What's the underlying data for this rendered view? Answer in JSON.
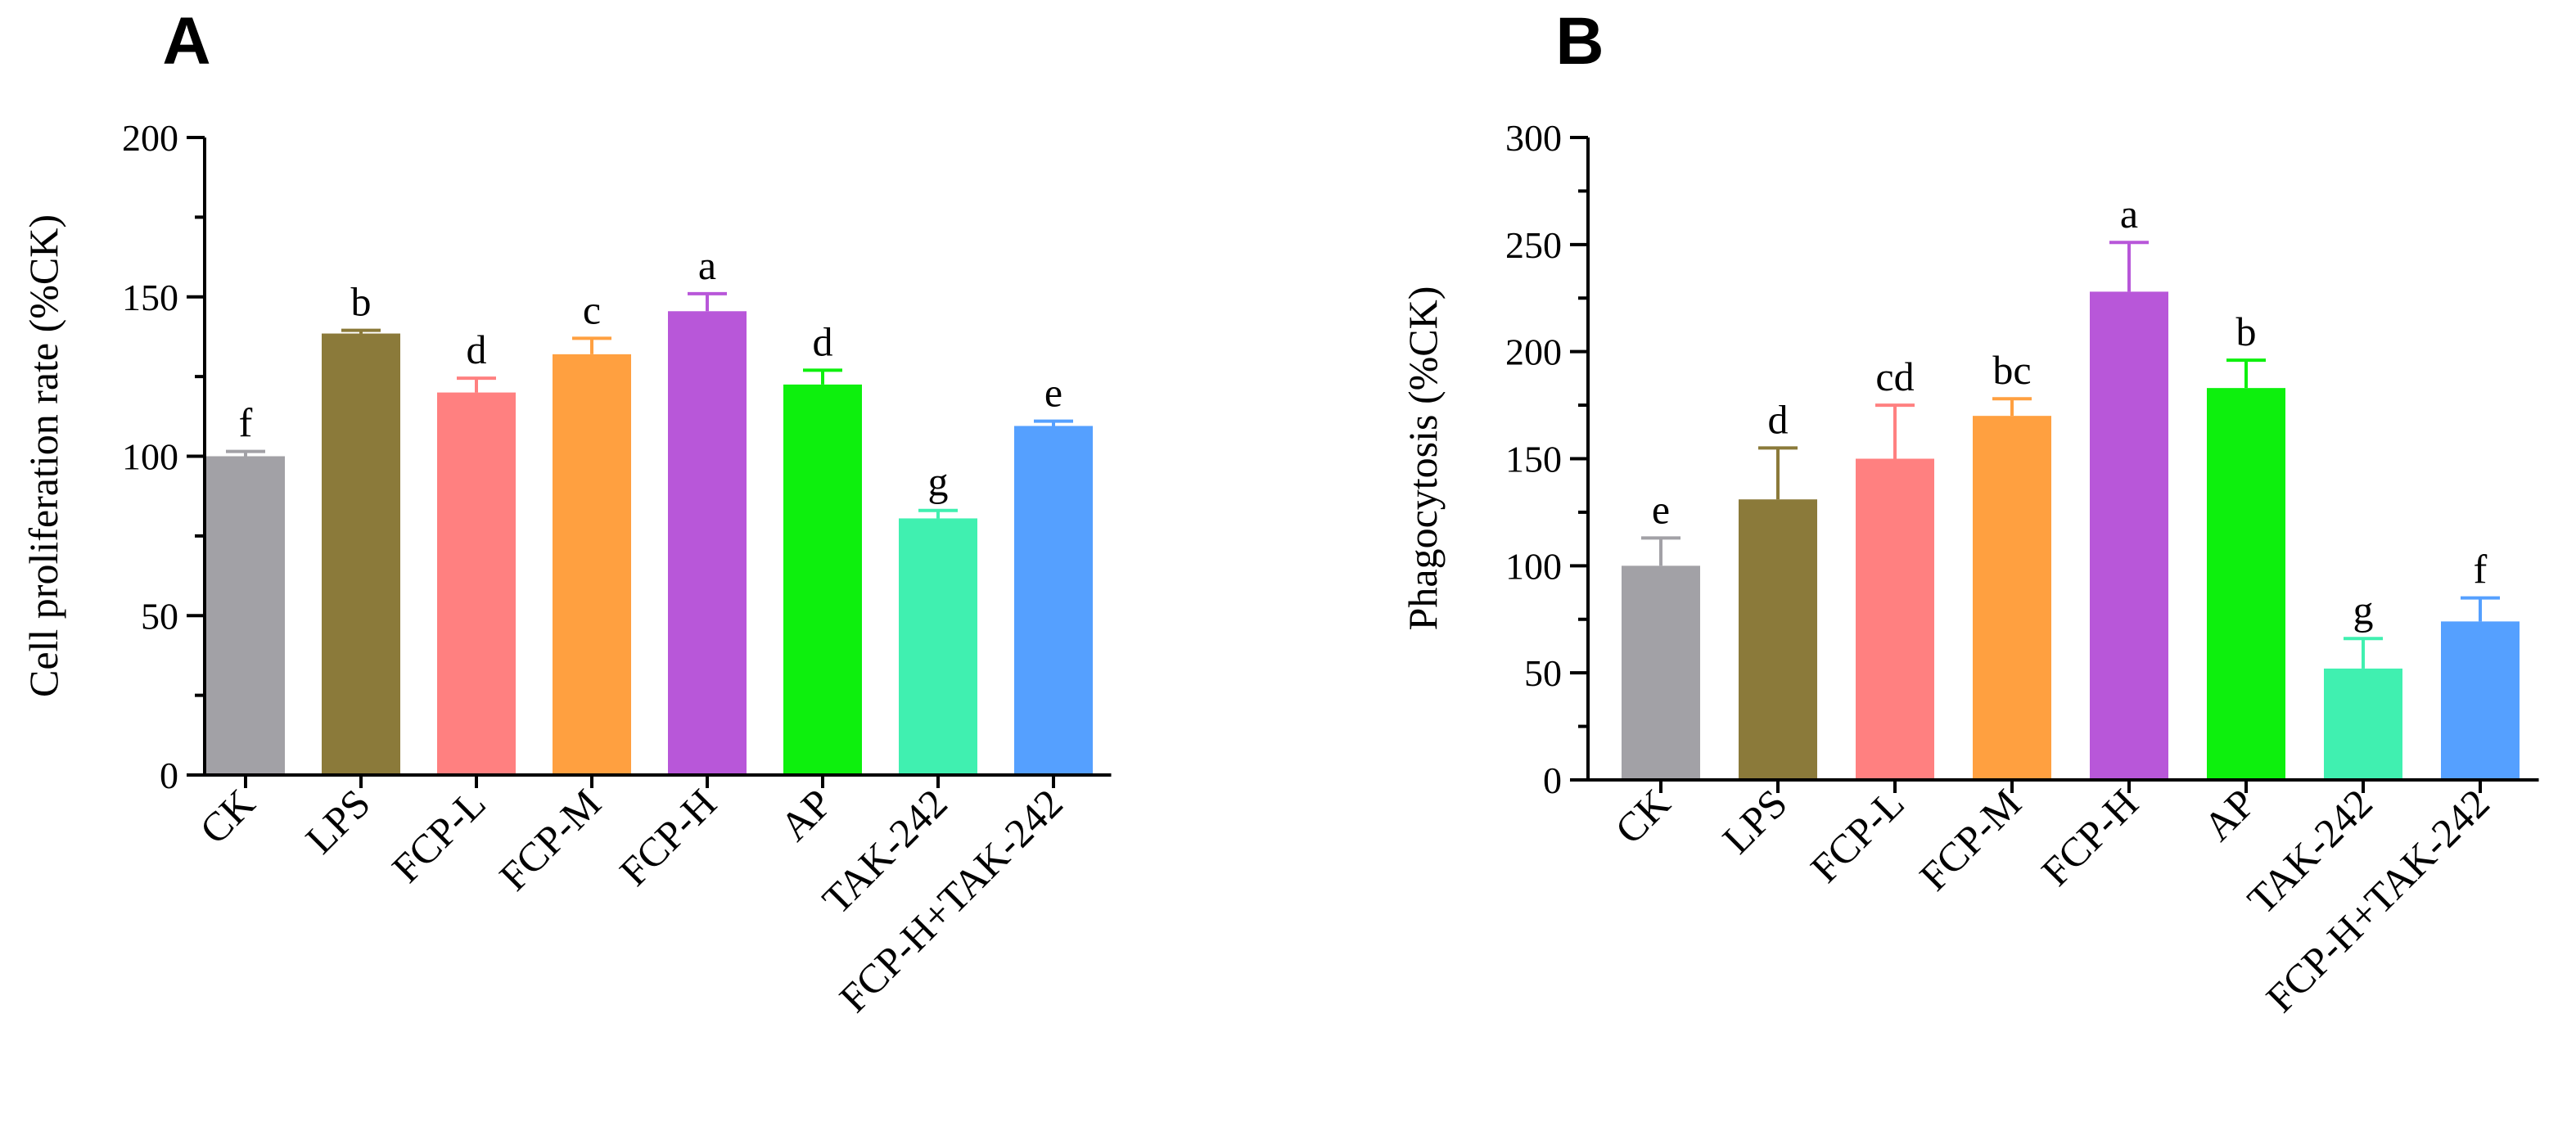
{
  "chart_data": [
    {
      "panel": "A",
      "type": "bar",
      "title": "",
      "xlabel": "",
      "ylabel": "Cell proliferation rate (%CK)",
      "ylim": [
        0,
        200
      ],
      "yticks": [
        0,
        50,
        100,
        150,
        200
      ],
      "grid": false,
      "categories": [
        "CK",
        "LPS",
        "FCP-L",
        "FCP-M",
        "FCP-H",
        "AP",
        "TAK-242",
        "FCP-H+TAK-242"
      ],
      "values": [
        100,
        138.5,
        120,
        132,
        145.5,
        122.5,
        80.5,
        109.5
      ],
      "errors": [
        1.5,
        1,
        4.5,
        5,
        5.5,
        4.5,
        2.5,
        1.5
      ],
      "significance": [
        "f",
        "b",
        "d",
        "c",
        "a",
        "d",
        "g",
        "e"
      ],
      "colors": [
        "#a2a1a6",
        "#8b7a3a",
        "#ff8080",
        "#ffa040",
        "#b857d9",
        "#0df00d",
        "#40f0b0",
        "#55a0ff"
      ]
    },
    {
      "panel": "B",
      "type": "bar",
      "title": "",
      "xlabel": "",
      "ylabel": "Phagocytosis (%CK)",
      "ylim": [
        0,
        300
      ],
      "yticks": [
        0,
        50,
        100,
        150,
        200,
        250,
        300
      ],
      "grid": false,
      "categories": [
        "CK",
        "LPS",
        "FCP-L",
        "FCP-M",
        "FCP-H",
        "AP",
        "TAK-242",
        "FCP-H+TAK-242"
      ],
      "values": [
        100,
        131,
        150,
        170,
        228,
        183,
        52,
        74
      ],
      "errors": [
        13,
        24,
        25,
        8,
        23,
        13,
        14,
        11
      ],
      "significance": [
        "e",
        "d",
        "cd",
        "bc",
        "a",
        "b",
        "g",
        "f"
      ],
      "colors": [
        "#a2a1a6",
        "#8b7a3a",
        "#ff8080",
        "#ffa040",
        "#b857d9",
        "#0df00d",
        "#40f0b0",
        "#55a0ff"
      ]
    }
  ]
}
